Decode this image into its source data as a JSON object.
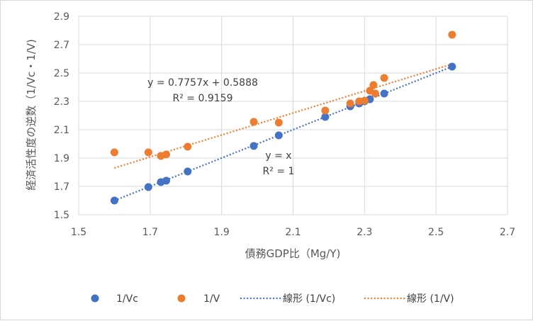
{
  "chart_data": {
    "type": "scatter",
    "xlabel": "債務GDP比（Mg/Y)",
    "ylabel": "経済活性度の逆数（1/Vc・1/V)",
    "xlim": [
      1.5,
      2.7
    ],
    "ylim": [
      1.5,
      2.9
    ],
    "x_ticks": [
      "1.5",
      "1.7",
      "1.9",
      "2.1",
      "2.3",
      "2.5",
      "2.7"
    ],
    "y_ticks": [
      "1.5",
      "1.7",
      "1.9",
      "2.1",
      "2.3",
      "2.5",
      "2.7",
      "2.9"
    ],
    "grid": true,
    "legend_position": "bottom",
    "series": [
      {
        "name": "1/Vc",
        "color": "#4472c4",
        "points": [
          [
            1.6,
            1.6
          ],
          [
            1.695,
            1.695
          ],
          [
            1.73,
            1.73
          ],
          [
            1.745,
            1.74
          ],
          [
            1.805,
            1.805
          ],
          [
            1.99,
            1.985
          ],
          [
            2.06,
            2.06
          ],
          [
            2.19,
            2.19
          ],
          [
            2.26,
            2.265
          ],
          [
            2.285,
            2.285
          ],
          [
            2.3,
            2.3
          ],
          [
            2.315,
            2.315
          ],
          [
            2.355,
            2.355
          ],
          [
            2.545,
            2.545
          ]
        ]
      },
      {
        "name": "1/V",
        "color": "#ed7d31",
        "points": [
          [
            1.6,
            1.94
          ],
          [
            1.695,
            1.94
          ],
          [
            1.73,
            1.915
          ],
          [
            1.745,
            1.925
          ],
          [
            1.805,
            1.98
          ],
          [
            1.99,
            2.155
          ],
          [
            2.06,
            2.15
          ],
          [
            2.19,
            2.235
          ],
          [
            2.26,
            2.285
          ],
          [
            2.285,
            2.3
          ],
          [
            2.3,
            2.305
          ],
          [
            2.315,
            2.375
          ],
          [
            2.325,
            2.415
          ],
          [
            2.33,
            2.355
          ],
          [
            2.355,
            2.465
          ],
          [
            2.545,
            2.77
          ]
        ]
      }
    ],
    "trendlines": [
      {
        "name": "線形 (1/Vc)",
        "color": "#4472c4",
        "slope": 1.0,
        "intercept": 0.0,
        "x_range": [
          1.6,
          2.545
        ]
      },
      {
        "name": "線形 (1/V)",
        "color": "#ed7d31",
        "slope": 0.7757,
        "intercept": 0.5888,
        "x_range": [
          1.6,
          2.545
        ]
      }
    ],
    "annotations": [
      {
        "line1": "y = 0.7757x + 0.5888",
        "line2": "R² = 0.9159"
      },
      {
        "line1": "y = x",
        "line2": "R² = 1"
      }
    ],
    "legend": [
      "1/Vc",
      "1/V",
      "線形 (1/Vc)",
      "線形 (1/V)"
    ]
  }
}
